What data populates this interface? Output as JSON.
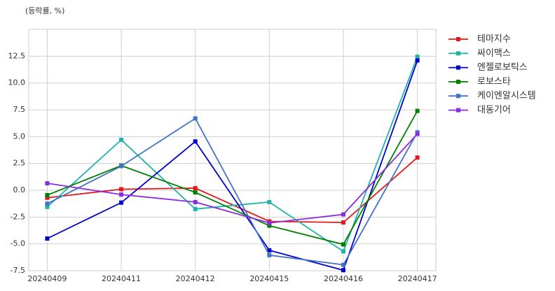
{
  "chart_data": {
    "type": "line",
    "subtitle": "(등락률, %)",
    "categories": [
      "20240409",
      "20240411",
      "20240412",
      "20240415",
      "20240416",
      "20240417"
    ],
    "series": [
      {
        "name": "테마지수",
        "color": "#e31a1c",
        "values": [
          -0.7,
          0.1,
          0.2,
          -2.9,
          -3.0,
          3.05
        ]
      },
      {
        "name": "싸이맥스",
        "color": "#20b2aa",
        "values": [
          -1.55,
          4.7,
          -1.75,
          -1.1,
          -5.7,
          12.45
        ]
      },
      {
        "name": "엔젤로보틱스",
        "color": "#0000cd",
        "values": [
          -4.5,
          -1.15,
          4.55,
          -5.6,
          -7.45,
          12.1
        ]
      },
      {
        "name": "로보스타",
        "color": "#008000",
        "values": [
          -0.45,
          2.3,
          -0.2,
          -3.3,
          -5.05,
          7.4
        ]
      },
      {
        "name": "케이엔알시스템",
        "color": "#4472c4",
        "values": [
          -1.25,
          2.25,
          6.7,
          -6.05,
          -6.95,
          5.4
        ]
      },
      {
        "name": "대동기어",
        "color": "#8a2be2",
        "values": [
          0.65,
          -0.4,
          -1.1,
          -3.05,
          -2.25,
          5.25
        ]
      }
    ],
    "ylim": [
      -7.5,
      15
    ],
    "yticks": [
      -7.5,
      {
        "value": -5,
        "label": "-5.0"
      },
      -2.5,
      {
        "value": 0,
        "label": "0.0"
      },
      2.5,
      {
        "value": 5,
        "label": "5.0"
      },
      7.5,
      {
        "value": 10,
        "label": "10.0"
      },
      12.5
    ],
    "grid": true
  }
}
